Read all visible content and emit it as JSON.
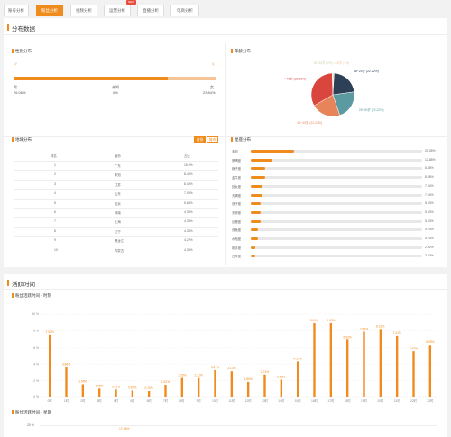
{
  "tabs": [
    {
      "label": "账号分析",
      "active": false
    },
    {
      "label": "粉丝分析",
      "active": true
    },
    {
      "label": "视频分析",
      "active": false
    },
    {
      "label": "运营分析",
      "active": false
    },
    {
      "label": "直播分析",
      "active": false
    },
    {
      "label": "电商分析",
      "active": false
    }
  ],
  "new_badge": "NEW",
  "distribution": {
    "title": "分布数据",
    "gender": {
      "title": "性别分布",
      "male_label": "男",
      "male_value": "76.06%",
      "unknown_label": "未知",
      "unknown_value": "0%",
      "female_label": "女",
      "female_value": "23.84%",
      "male_fraction": 0.7606
    },
    "age": {
      "title": "年龄分布",
      "slices": [
        {
          "label": "<18岁 (1%)",
          "value": 1,
          "color": "#f4c6a0"
        },
        {
          "label": "18~24岁 (22.22%)",
          "value": 22.22,
          "color": "#2e4057"
        },
        {
          "label": "25~30岁 (22.22%)",
          "value": 22.22,
          "color": "#5b9aa0"
        },
        {
          "label": "31~40岁 (22.22%)",
          "value": 22.22,
          "color": "#e8845a"
        },
        {
          "label": ">40岁 (33.33%)",
          "value": 33.33,
          "color": "#d9463e"
        },
        {
          "label": "25~30岁 (0%)",
          "value": 0.5,
          "color": "#c8d7a0"
        }
      ]
    },
    "region": {
      "title": "地域分布",
      "toggle_on": "省份",
      "toggle_off": "城市",
      "headers": [
        "排名",
        "省份",
        "占比"
      ],
      "rows": [
        [
          "1",
          "广东",
          "16.9%"
        ],
        [
          "2",
          "未知",
          "8.45%"
        ],
        [
          "3",
          "江苏",
          "8.45%"
        ],
        [
          "4",
          "山东",
          "7.04%"
        ],
        [
          "5",
          "北京",
          "5.63%"
        ],
        [
          "6",
          "河南",
          "4.33%"
        ],
        [
          "7",
          "上海",
          "4.33%"
        ],
        [
          "8",
          "辽宁",
          "4.33%"
        ],
        [
          "9",
          "黑龙江",
          "4.22%"
        ],
        [
          "10",
          "内蒙古",
          "4.33%"
        ]
      ]
    },
    "constellation": {
      "title": "星座分布",
      "rows": [
        {
          "name": "未知",
          "value": "25.35%",
          "fraction": 0.2535
        },
        {
          "name": "摩羯座",
          "value": "12.68%",
          "fraction": 0.1268
        },
        {
          "name": "狮子座",
          "value": "8.45%",
          "fraction": 0.0845
        },
        {
          "name": "金牛座",
          "value": "8.45%",
          "fraction": 0.0845
        },
        {
          "name": "处女座",
          "value": "7.04%",
          "fraction": 0.0704
        },
        {
          "name": "天蝎座",
          "value": "7.04%",
          "fraction": 0.0704
        },
        {
          "name": "双子座",
          "value": "5.63%",
          "fraction": 0.0563
        },
        {
          "name": "天秤座",
          "value": "5.63%",
          "fraction": 0.0563
        },
        {
          "name": "巨蟹座",
          "value": "5.63%",
          "fraction": 0.0563
        },
        {
          "name": "双鱼座",
          "value": "4.23%",
          "fraction": 0.0423
        },
        {
          "name": "水瓶座",
          "value": "4.23%",
          "fraction": 0.0423
        },
        {
          "name": "射手座",
          "value": "2.82%",
          "fraction": 0.0282
        },
        {
          "name": "白羊座",
          "value": "2.82%",
          "fraction": 0.0282
        }
      ]
    }
  },
  "activity": {
    "title": "活跃时间",
    "hourly_title": "粉丝活跃时间 - 时刻",
    "weekly_title": "粉丝活跃时间 - 星期",
    "weekly_top_tick": "20 %",
    "weekly_peak_label": "17.86%"
  },
  "chart_data": {
    "type": "bar",
    "title": "粉丝活跃时间 - 时刻",
    "categories": [
      "0时",
      "1时",
      "2时",
      "3时",
      "4时",
      "5时",
      "6时",
      "7时",
      "8时",
      "9时",
      "10时",
      "11时",
      "12时",
      "13时",
      "14时",
      "15时",
      "16时",
      "17时",
      "18时",
      "19时",
      "20时",
      "21时",
      "22时",
      "23时"
    ],
    "values": [
      7.52,
      3.66,
      1.58,
      1.05,
      0.95,
      0.82,
      0.76,
      1.52,
      2.33,
      2.31,
      3.27,
      3.13,
      1.86,
      2.74,
      2.12,
      4.31,
      8.91,
      8.92,
      6.92,
      7.88,
      8.22,
      7.41,
      5.53,
      6.28
    ],
    "value_labels": [
      "7.52%",
      "3.66%",
      "1.58%",
      "1.05%",
      "0.95%",
      "0.82%",
      "0.76%",
      "1.52%",
      "2.33%",
      "2.31%",
      "3.27%",
      "3.13%",
      "1.86%",
      "2.74%",
      "2.12%",
      "4.31%",
      "8.91%",
      "8.92%",
      "6.92%",
      "7.88%",
      "8.22%",
      "7.41%",
      "5.53%",
      "6.28%"
    ],
    "yticks": [
      "10 %",
      "8 %",
      "6 %",
      "4 %",
      "2 %",
      "0 %"
    ],
    "ylim": [
      0,
      10
    ],
    "color": "#f08c1e",
    "grid": true
  }
}
